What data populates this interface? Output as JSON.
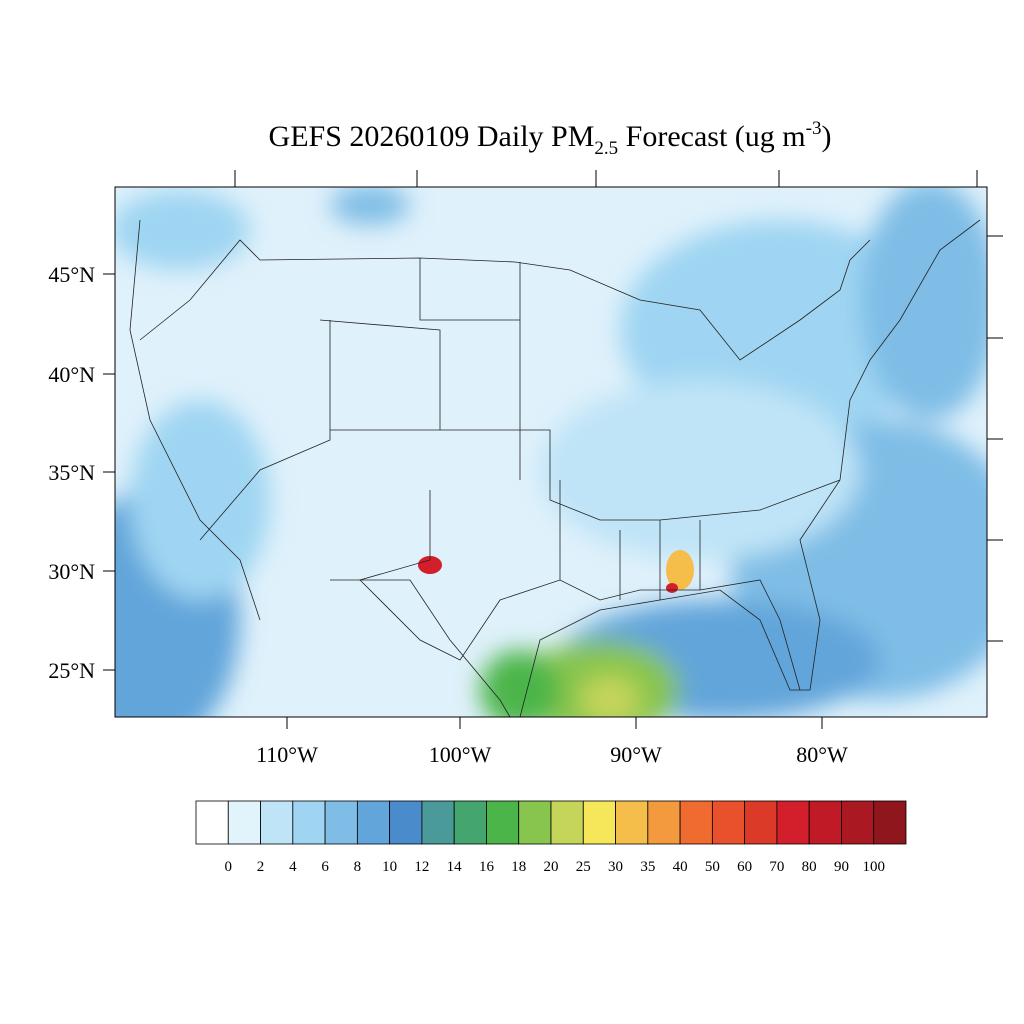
{
  "title": {
    "prefix": "GEFS 20260109 Daily PM",
    "subscript": "2.5",
    "middle": " Forecast (ug m",
    "superscript": "-3",
    "suffix": ")"
  },
  "map": {
    "lat_labels": [
      "45°N",
      "40°N",
      "35°N",
      "30°N",
      "25°N"
    ],
    "lon_labels": [
      "110°W",
      "100°W",
      "90°W",
      "80°W"
    ]
  },
  "colorbar": {
    "labels": [
      "0",
      "2",
      "4",
      "6",
      "8",
      "10",
      "12",
      "14",
      "16",
      "18",
      "20",
      "25",
      "30",
      "35",
      "40",
      "50",
      "60",
      "70",
      "80",
      "90",
      "100"
    ],
    "colors": [
      "#ffffff",
      "#e1f3fb",
      "#bfe4f7",
      "#9fd5f2",
      "#7fbde6",
      "#62a5da",
      "#4a8ccb",
      "#4a9a9a",
      "#45a56e",
      "#4cb54a",
      "#87c54e",
      "#c4d55a",
      "#f5e65a",
      "#f5bd4a",
      "#f39a3e",
      "#f06b2f",
      "#e8512c",
      "#dc3a28",
      "#d21f2b",
      "#bf1a26",
      "#aa1822",
      "#90161d"
    ]
  }
}
